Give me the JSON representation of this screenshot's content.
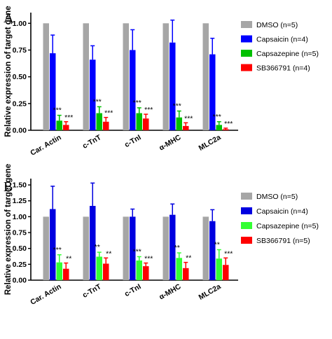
{
  "chart_data": [
    {
      "type": "bar",
      "panel_letter": "A",
      "ylabel": "Relative expression of target gene",
      "ylim": [
        0,
        1.1
      ],
      "yticks": [
        "0.00",
        "0.25",
        "0.50",
        "0.75",
        "1.00"
      ],
      "categories": [
        "Car. Actin",
        "c-TnT",
        "c-TnI",
        "α-MHC",
        "MLC2a"
      ],
      "legend_position": "right",
      "series": [
        {
          "name": "DMSO (n=5)",
          "color": "#a6a6a6",
          "values": [
            1.0,
            1.0,
            1.0,
            1.0,
            1.0
          ],
          "errors": [
            0,
            0,
            0,
            0,
            0
          ],
          "sig": [
            "",
            "",
            "",
            "",
            ""
          ]
        },
        {
          "name": "Capsaicin (n=4)",
          "color": "#0000ff",
          "values": [
            0.72,
            0.66,
            0.75,
            0.82,
            0.71
          ],
          "errors": [
            0.17,
            0.13,
            0.19,
            0.21,
            0.15
          ],
          "sig": [
            "",
            "",
            "",
            "",
            ""
          ]
        },
        {
          "name": "Capsazepine (n=5)",
          "color": "#00c000",
          "values": [
            0.09,
            0.16,
            0.16,
            0.12,
            0.05
          ],
          "errors": [
            0.05,
            0.06,
            0.05,
            0.06,
            0.03
          ],
          "sig": [
            "***",
            "***",
            "***",
            "***",
            "***"
          ]
        },
        {
          "name": "SB366791 (n=4)",
          "color": "#ff0000",
          "values": [
            0.05,
            0.08,
            0.11,
            0.04,
            0.01
          ],
          "errors": [
            0.03,
            0.04,
            0.04,
            0.03,
            0.01
          ],
          "sig": [
            "***",
            "***",
            "***",
            "***",
            "***"
          ]
        }
      ]
    },
    {
      "type": "bar",
      "panel_letter": "B",
      "ylabel": "Relative expression of target gene",
      "ylim": [
        0,
        1.6
      ],
      "yticks": [
        "0.00",
        "0.25",
        "0.50",
        "0.75",
        "1.00",
        "1.25",
        "1.50"
      ],
      "categories": [
        "Car. Actin",
        "c-TnT",
        "c-TnI",
        "α-MHC",
        "MLC2a"
      ],
      "legend_position": "right",
      "series": [
        {
          "name": "DMSO (n=5)",
          "color": "#a6a6a6",
          "values": [
            1.0,
            1.0,
            1.0,
            1.0,
            1.0
          ],
          "errors": [
            0,
            0,
            0,
            0,
            0
          ],
          "sig": [
            "",
            "",
            "",
            "",
            ""
          ]
        },
        {
          "name": "Capsaicin (n=4)",
          "color": "#0000e0",
          "values": [
            1.12,
            1.17,
            1.0,
            1.03,
            0.93
          ],
          "errors": [
            0.36,
            0.36,
            0.12,
            0.17,
            0.18
          ],
          "sig": [
            "",
            "",
            "",
            "",
            ""
          ]
        },
        {
          "name": "Capsazepine (n=5)",
          "color": "#33ff33",
          "values": [
            0.28,
            0.37,
            0.31,
            0.35,
            0.34
          ],
          "errors": [
            0.12,
            0.07,
            0.06,
            0.08,
            0.14
          ],
          "sig": [
            "***",
            "**",
            "***",
            "**",
            "**"
          ]
        },
        {
          "name": "SB366791 (n=5)",
          "color": "#ff0000",
          "values": [
            0.18,
            0.26,
            0.22,
            0.19,
            0.24
          ],
          "errors": [
            0.09,
            0.09,
            0.05,
            0.09,
            0.11
          ],
          "sig": [
            "**",
            "**",
            "***",
            "**",
            "***"
          ]
        }
      ]
    }
  ]
}
